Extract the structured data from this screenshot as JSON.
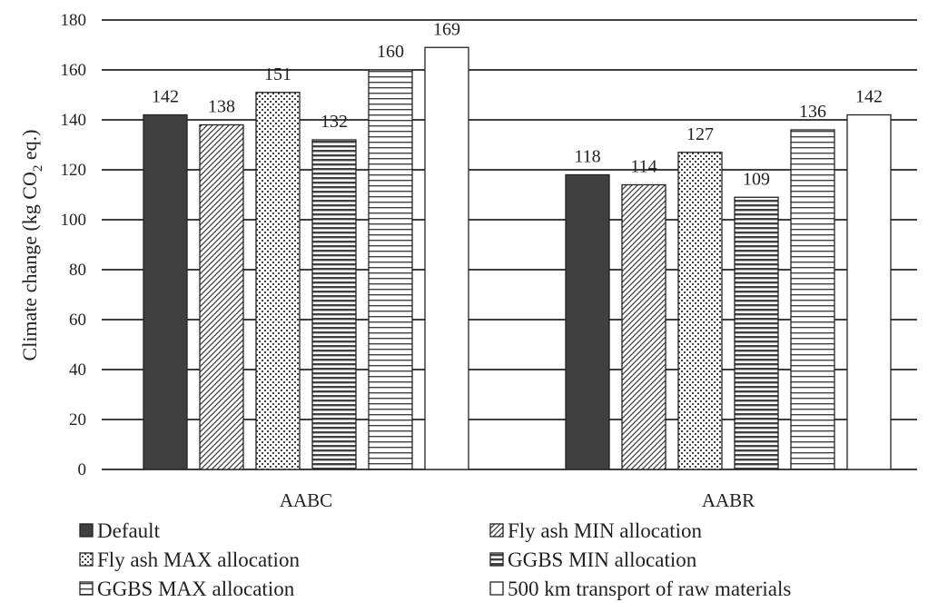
{
  "chart_data": {
    "type": "bar",
    "categories": [
      "AABC",
      "AABR"
    ],
    "series": [
      {
        "name": "Default",
        "values": [
          142,
          118
        ],
        "pattern": "solid",
        "color": "#404040"
      },
      {
        "name": "Fly ash MIN allocation",
        "values": [
          138,
          114
        ],
        "pattern": "diag-dense",
        "color": "#404040"
      },
      {
        "name": "Fly ash MAX allocation",
        "values": [
          151,
          127
        ],
        "pattern": "dots",
        "color": "#404040"
      },
      {
        "name": "GGBS MIN allocation",
        "values": [
          132,
          109
        ],
        "pattern": "horiz-dense",
        "color": "#404040"
      },
      {
        "name": "GGBS MAX allocation",
        "values": [
          160,
          136
        ],
        "pattern": "horiz",
        "color": "#404040"
      },
      {
        "name": "500 km transport of raw materials",
        "values": [
          169,
          142
        ],
        "pattern": "none",
        "color": "#ffffff"
      }
    ],
    "data_labels": [
      [
        "142",
        "138",
        "151",
        "132",
        "160",
        "169"
      ],
      [
        "118",
        "114",
        "127",
        "109",
        "136",
        "142"
      ]
    ],
    "ylabel_parts": {
      "before": "Climate change (kg CO",
      "sub": "2",
      "after": " eq.)"
    },
    "ylim": [
      0,
      180
    ],
    "yticks": [
      0,
      20,
      40,
      60,
      80,
      100,
      120,
      140,
      160,
      180
    ],
    "ytick_labels": [
      "0",
      "20",
      "40",
      "60",
      "80",
      "100",
      "120",
      "140",
      "160",
      "180"
    ],
    "grid": true,
    "legend_placement": "bottom"
  }
}
